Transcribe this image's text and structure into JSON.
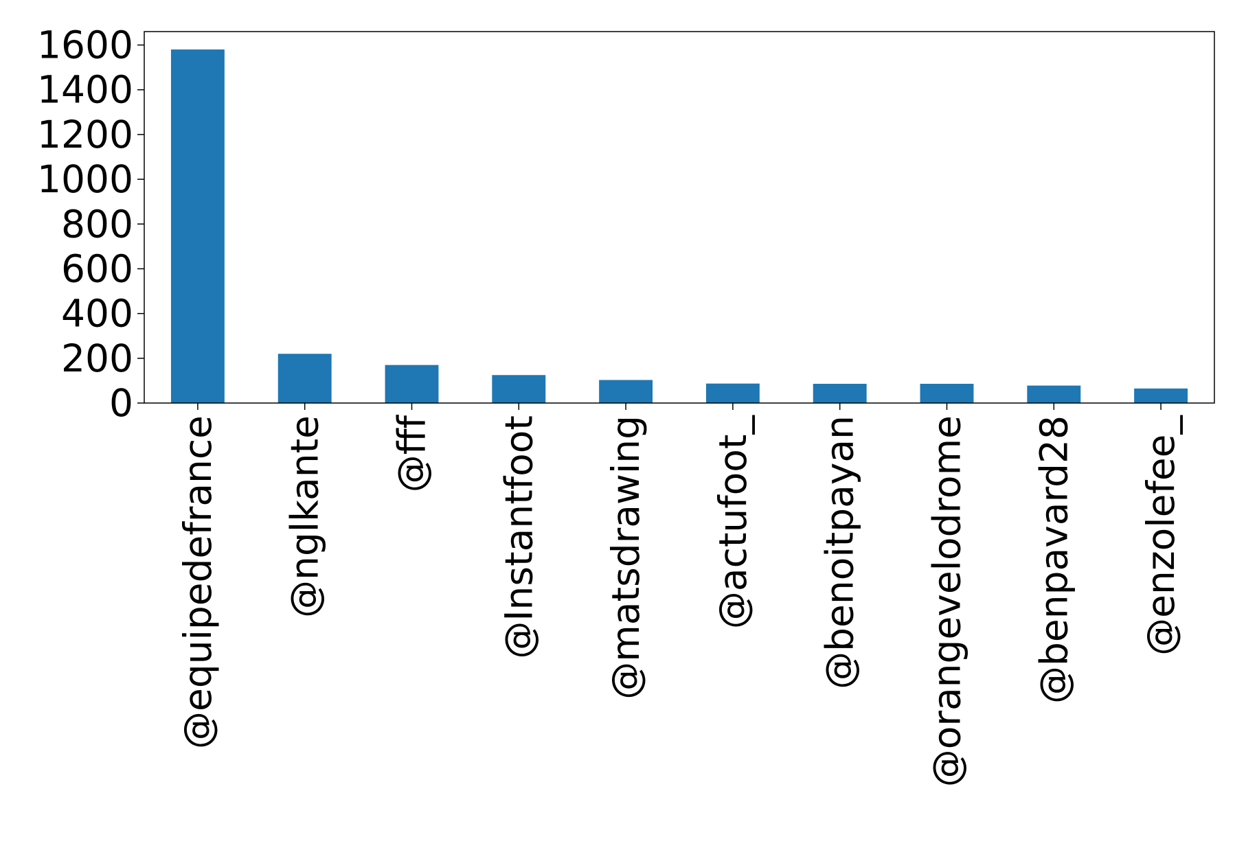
{
  "chart_data": {
    "type": "bar",
    "title": "",
    "xlabel": "",
    "ylabel": "",
    "categories": [
      "@equipedefrance",
      "@nglkante",
      "@fff",
      "@Instantfoot",
      "@matsdrawing",
      "@actufoot_",
      "@benoitpayan",
      "@orangevelodrome",
      "@benpavard28",
      "@enzolefee_"
    ],
    "series": [
      {
        "values": [
          1580,
          220,
          170,
          125,
          103,
          87,
          86,
          86,
          78,
          65
        ]
      }
    ],
    "ylim": [
      0,
      1660
    ],
    "yticks": [
      0,
      200,
      400,
      600,
      800,
      1000,
      1200,
      1400,
      1600
    ],
    "grid": false,
    "legend": "none",
    "colors": {
      "bar": "#1f77b4",
      "axis": "#000000"
    }
  }
}
